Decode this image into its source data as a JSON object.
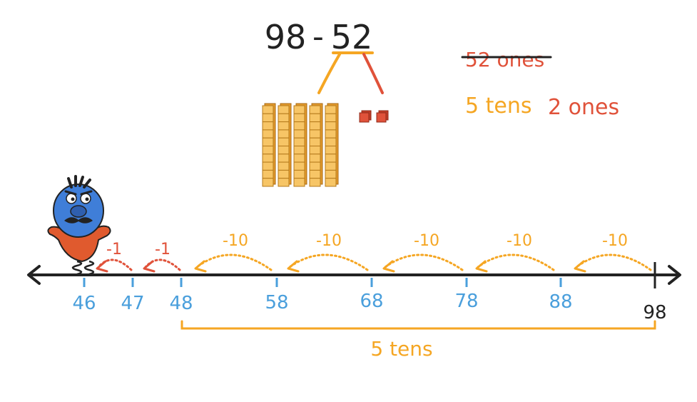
{
  "equation": "98 - 52",
  "equation_first": "98",
  "equation_minus": "-",
  "equation_second": "52",
  "notes": {
    "struck": "52 ones",
    "tens": "5 tens",
    "ones": "2 ones"
  },
  "blocks": {
    "tens_rods": 5,
    "ones_cubes": 2
  },
  "number_line": {
    "labels": [
      "46",
      "47",
      "48",
      "58",
      "68",
      "78",
      "88",
      "98"
    ],
    "ten_jump_label": "-10",
    "one_jump_label": "-1",
    "bracket_label": "5 tens"
  },
  "colors": {
    "orange": "#f5a623",
    "red": "#e0523a",
    "blue": "#4a9fdc",
    "black": "#222222",
    "character_body": "#3f7ed8",
    "character_shirt": "#e05a2e"
  }
}
